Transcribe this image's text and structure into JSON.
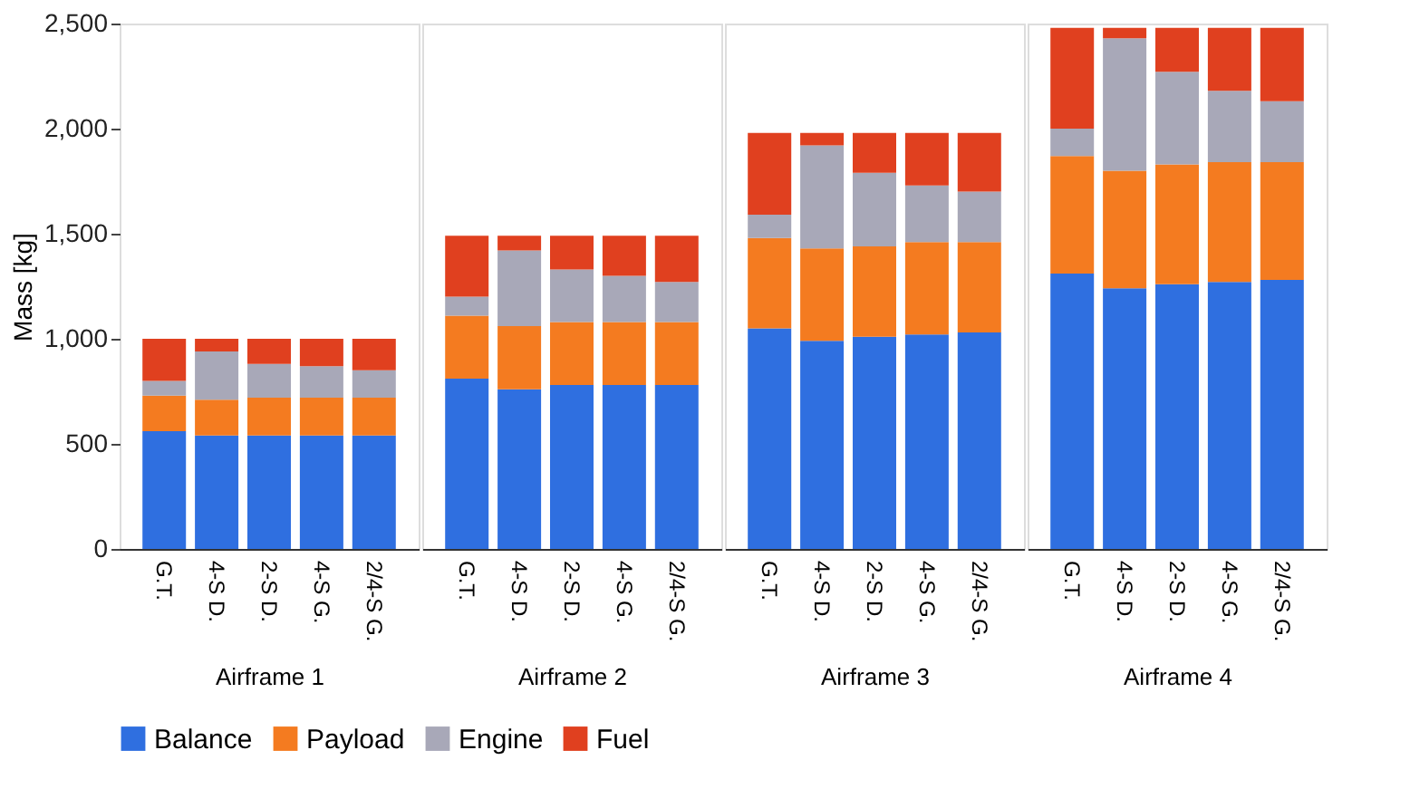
{
  "chart_data": [
    {
      "type": "bar",
      "stacked": true,
      "xlabel": "Airframe 1",
      "ylabel": "Mass [kg]",
      "categories": [
        "G.T.",
        "4-S D.",
        "2-S D.",
        "4-S G.",
        "2/4-S G."
      ],
      "ylim": [
        0,
        2500
      ],
      "yticks": [
        0,
        500,
        {
          "value": 1000,
          "label": "1,000"
        },
        {
          "value": 1500,
          "label": "1,500"
        },
        {
          "value": 2000,
          "label": "2,000"
        },
        {
          "value": 2500,
          "label": "2,500"
        }
      ],
      "grid": false,
      "legend": "bottom",
      "series": [
        {
          "name": "Balance",
          "color": "#2f6fe0",
          "values": [
            560,
            540,
            540,
            540,
            540
          ]
        },
        {
          "name": "Payload",
          "color": "#f47b20",
          "values": [
            170,
            170,
            180,
            180,
            180
          ]
        },
        {
          "name": "Engine",
          "color": "#a8a8b8",
          "values": [
            70,
            230,
            160,
            150,
            130
          ]
        },
        {
          "name": "Fuel",
          "color": "#e0401f",
          "values": [
            200,
            60,
            120,
            130,
            150
          ]
        }
      ]
    },
    {
      "type": "bar",
      "stacked": true,
      "xlabel": "Airframe 2",
      "categories": [
        "G.T.",
        "4-S D.",
        "2-S D.",
        "4-S G.",
        "2/4-S G."
      ],
      "ylim": [
        0,
        2500
      ],
      "tick_labels": "x",
      "grid": false,
      "legend": false,
      "series": [
        {
          "color": "#2f6fe0",
          "values": [
            810,
            760,
            780,
            780,
            780
          ]
        },
        {
          "color": "#f47b20",
          "values": [
            300,
            300,
            300,
            300,
            300
          ]
        },
        {
          "color": "#a8a8b8",
          "values": [
            90,
            360,
            250,
            220,
            190
          ]
        },
        {
          "color": "#e0401f",
          "values": [
            290,
            70,
            160,
            190,
            220
          ]
        }
      ]
    },
    {
      "type": "bar",
      "stacked": true,
      "xlabel": "Airframe 3",
      "categories": [
        "G.T.",
        "4-S D.",
        "2-S D.",
        "4-S G.",
        "2/4-S G."
      ],
      "ylim": [
        0,
        2500
      ],
      "tick_labels": "x",
      "grid": false,
      "legend": false,
      "series": [
        {
          "color": "#2f6fe0",
          "values": [
            1050,
            990,
            1010,
            1020,
            1030
          ]
        },
        {
          "color": "#f47b20",
          "values": [
            430,
            440,
            430,
            440,
            430
          ]
        },
        {
          "color": "#a8a8b8",
          "values": [
            110,
            490,
            350,
            270,
            240
          ]
        },
        {
          "color": "#e0401f",
          "values": [
            390,
            60,
            190,
            250,
            280
          ]
        }
      ]
    },
    {
      "type": "bar",
      "stacked": true,
      "xlabel": "Airframe 4",
      "categories": [
        "G.T.",
        "4-S D.",
        "2-S D.",
        "4-S G.",
        "2/4-S G."
      ],
      "ylim": [
        0,
        2500
      ],
      "tick_labels": "x",
      "grid": false,
      "legend": false,
      "series": [
        {
          "color": "#2f6fe0",
          "values": [
            1310,
            1240,
            1260,
            1270,
            1280
          ]
        },
        {
          "color": "#f47b20",
          "values": [
            560,
            560,
            570,
            570,
            560
          ]
        },
        {
          "color": "#a8a8b8",
          "values": [
            130,
            630,
            440,
            340,
            290
          ]
        },
        {
          "color": "#e0401f",
          "values": [
            480,
            50,
            210,
            300,
            350
          ]
        }
      ]
    }
  ]
}
